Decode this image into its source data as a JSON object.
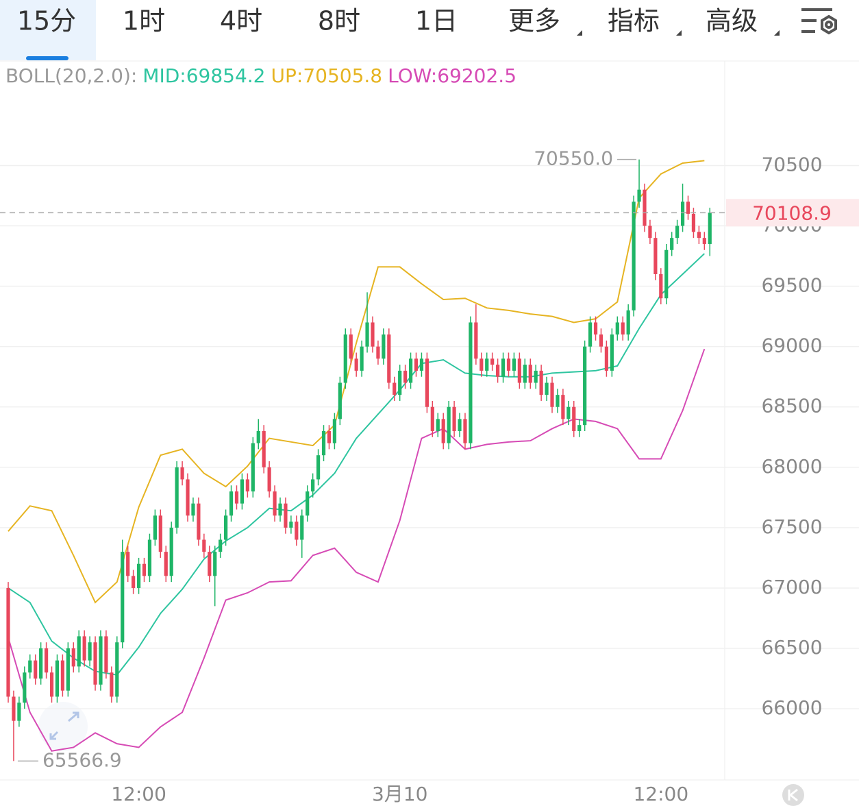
{
  "tabs": [
    "15分",
    "1时",
    "4时",
    "8时",
    "1日",
    "更多",
    "指标",
    "高级"
  ],
  "chart_data": {
    "type": "candlestick",
    "indicator": {
      "name": "BOLL(20,2.0):",
      "mid": "MID:69854.2",
      "up": "UP:70505.8",
      "low": "LOW:69202.5"
    },
    "candles": [
      [
        67000,
        67050,
        66050,
        66100
      ],
      [
        66100,
        66150,
        65566.9,
        65900
      ],
      [
        65900,
        66100,
        65850,
        66050
      ],
      [
        66050,
        66350,
        66000,
        66300
      ],
      [
        66300,
        66450,
        66250,
        66400
      ],
      [
        66400,
        66450,
        66200,
        66250
      ],
      [
        66250,
        66550,
        66200,
        66500
      ],
      [
        66500,
        66550,
        66250,
        66300
      ],
      [
        66300,
        66350,
        66050,
        66100
      ],
      [
        66100,
        66450,
        66050,
        66400
      ],
      [
        66400,
        66450,
        66100,
        66150
      ],
      [
        66150,
        66550,
        66100,
        66500
      ],
      [
        66500,
        66550,
        66300,
        66350
      ],
      [
        66350,
        66650,
        66300,
        66600
      ],
      [
        66600,
        66650,
        66350,
        66400
      ],
      [
        66400,
        66600,
        66350,
        66550
      ],
      [
        66550,
        66600,
        66150,
        66200
      ],
      [
        66200,
        66650,
        66150,
        66600
      ],
      [
        66600,
        66650,
        66250,
        66300
      ],
      [
        66300,
        66350,
        66050,
        66100
      ],
      [
        66100,
        66600,
        66050,
        66550
      ],
      [
        66550,
        67400,
        66500,
        67300
      ],
      [
        67300,
        67350,
        67050,
        67100
      ],
      [
        67100,
        67150,
        66950,
        67000
      ],
      [
        67000,
        67250,
        66950,
        67200
      ],
      [
        67200,
        67250,
        67050,
        67100
      ],
      [
        67100,
        67450,
        67050,
        67400
      ],
      [
        67400,
        67650,
        67350,
        67600
      ],
      [
        67600,
        67650,
        67250,
        67300
      ],
      [
        67300,
        67350,
        67050,
        67100
      ],
      [
        67100,
        67550,
        67050,
        67500
      ],
      [
        67500,
        68050,
        67450,
        68000
      ],
      [
        68000,
        68050,
        67850,
        67900
      ],
      [
        67900,
        67950,
        67550,
        67600
      ],
      [
        67600,
        67750,
        67550,
        67700
      ],
      [
        67700,
        67750,
        67350,
        67400
      ],
      [
        67400,
        67450,
        67250,
        67300
      ],
      [
        67300,
        67350,
        67050,
        67100
      ],
      [
        67100,
        67350,
        66850,
        67300
      ],
      [
        67300,
        67450,
        67250,
        67400
      ],
      [
        67400,
        67650,
        67350,
        67600
      ],
      [
        67600,
        67850,
        67550,
        67800
      ],
      [
        67800,
        67850,
        67650,
        67700
      ],
      [
        67700,
        67950,
        67650,
        67900
      ],
      [
        67900,
        67950,
        67750,
        67800
      ],
      [
        67800,
        68250,
        67750,
        68200
      ],
      [
        68200,
        68400,
        68150,
        68300
      ],
      [
        68300,
        68350,
        67950,
        68000
      ],
      [
        68000,
        68050,
        67750,
        67800
      ],
      [
        67800,
        67850,
        67550,
        67600
      ],
      [
        67600,
        67750,
        67550,
        67700
      ],
      [
        67700,
        67750,
        67450,
        67500
      ],
      [
        67500,
        67600,
        67450,
        67550
      ],
      [
        67550,
        67600,
        67350,
        67400
      ],
      [
        67400,
        67650,
        67250,
        67600
      ],
      [
        67600,
        67850,
        67550,
        67800
      ],
      [
        67800,
        67950,
        67750,
        67900
      ],
      [
        67900,
        68150,
        67850,
        68100
      ],
      [
        68100,
        68350,
        68050,
        68300
      ],
      [
        68300,
        68350,
        68150,
        68200
      ],
      [
        68200,
        68450,
        68150,
        68400
      ],
      [
        68400,
        68750,
        68350,
        68700
      ],
      [
        68700,
        69150,
        68650,
        69100
      ],
      [
        69100,
        69150,
        68850,
        68900
      ],
      [
        68900,
        68950,
        68750,
        68800
      ],
      [
        68800,
        69050,
        68750,
        69000
      ],
      [
        69000,
        69450,
        68950,
        69200
      ],
      [
        69200,
        69250,
        68950,
        69000
      ],
      [
        69000,
        69050,
        68850,
        68900
      ],
      [
        68900,
        69150,
        68850,
        69100
      ],
      [
        69100,
        69150,
        68650,
        68700
      ],
      [
        68700,
        68750,
        68550,
        68600
      ],
      [
        68600,
        68850,
        68550,
        68800
      ],
      [
        68800,
        68850,
        68650,
        68700
      ],
      [
        68700,
        68950,
        68650,
        68900
      ],
      [
        68900,
        68950,
        68750,
        68800
      ],
      [
        68800,
        68950,
        68750,
        68900
      ],
      [
        68900,
        68950,
        68450,
        68500
      ],
      [
        68500,
        68550,
        68250,
        68300
      ],
      [
        68300,
        68450,
        68250,
        68400
      ],
      [
        68400,
        68450,
        68150,
        68200
      ],
      [
        68200,
        68550,
        68150,
        68500
      ],
      [
        68500,
        68550,
        68250,
        68300
      ],
      [
        68300,
        68450,
        68250,
        68400
      ],
      [
        68400,
        68450,
        68150,
        68200
      ],
      [
        68200,
        69250,
        68150,
        69200
      ],
      [
        69200,
        69350,
        68850,
        68900
      ],
      [
        68900,
        68950,
        68750,
        68800
      ],
      [
        68800,
        68950,
        68750,
        68900
      ],
      [
        68900,
        68950,
        68800,
        68850
      ],
      [
        68850,
        68900,
        68700,
        68750
      ],
      [
        68750,
        68950,
        68700,
        68900
      ],
      [
        68900,
        68950,
        68750,
        68800
      ],
      [
        68800,
        68950,
        68750,
        68900
      ],
      [
        68900,
        68950,
        68650,
        68700
      ],
      [
        68700,
        68900,
        68650,
        68850
      ],
      [
        68850,
        68900,
        68650,
        68700
      ],
      [
        68700,
        68850,
        68650,
        68800
      ],
      [
        68800,
        68850,
        68550,
        68600
      ],
      [
        68600,
        68750,
        68550,
        68700
      ],
      [
        68700,
        68750,
        68450,
        68500
      ],
      [
        68500,
        68650,
        68450,
        68600
      ],
      [
        68600,
        68650,
        68350,
        68400
      ],
      [
        68400,
        68550,
        68350,
        68500
      ],
      [
        68500,
        68550,
        68250,
        68300
      ],
      [
        68300,
        68400,
        68250,
        68350
      ],
      [
        68350,
        69050,
        68300,
        69000
      ],
      [
        69000,
        69250,
        68950,
        69200
      ],
      [
        69200,
        69250,
        69050,
        69100
      ],
      [
        69100,
        69150,
        68950,
        69000
      ],
      [
        69000,
        69050,
        68750,
        68800
      ],
      [
        68800,
        69150,
        68750,
        69100
      ],
      [
        69100,
        69250,
        69050,
        69200
      ],
      [
        69200,
        69250,
        69050,
        69100
      ],
      [
        69100,
        69350,
        69050,
        69300
      ],
      [
        69300,
        70250,
        69250,
        70200
      ],
      [
        70200,
        70550,
        70150,
        70300
      ],
      [
        70300,
        70350,
        69950,
        70000
      ],
      [
        70000,
        70050,
        69850,
        69900
      ],
      [
        69900,
        69950,
        69550,
        69600
      ],
      [
        69600,
        69650,
        69350,
        69400
      ],
      [
        69400,
        69850,
        69350,
        69800
      ],
      [
        69800,
        69950,
        69750,
        69900
      ],
      [
        69900,
        70050,
        69850,
        70000
      ],
      [
        70000,
        70350,
        69950,
        70200
      ],
      [
        70200,
        70250,
        70050,
        70100
      ],
      [
        70100,
        70150,
        69900,
        69950
      ],
      [
        69950,
        70000,
        69850,
        69900
      ],
      [
        69900,
        69950,
        69800,
        69850
      ],
      [
        69850,
        70150,
        69750,
        70108.9
      ]
    ],
    "up_color": "#1fb567",
    "down_color": "#e8475c",
    "boll_x": [
      0,
      4,
      8,
      12,
      16,
      20,
      24,
      28,
      32,
      36,
      40,
      44,
      48,
      52,
      56,
      60,
      64,
      68,
      72,
      76,
      80,
      84,
      88,
      92,
      96,
      100,
      104,
      108,
      112,
      116,
      120,
      124,
      128
    ],
    "series": [
      {
        "name": "UP",
        "color": "#e6b422",
        "values": [
          67470,
          67680,
          67640,
          67270,
          66880,
          67050,
          67670,
          68100,
          68150,
          67950,
          67840,
          68010,
          68240,
          68210,
          68180,
          68350,
          69030,
          69660,
          69660,
          69520,
          69390,
          69400,
          69320,
          69300,
          69270,
          69250,
          69200,
          69230,
          69370,
          70230,
          70430,
          70520,
          70540
        ]
      },
      {
        "name": "MID",
        "color": "#2ec5a0",
        "values": [
          67000,
          66880,
          66560,
          66420,
          66310,
          66280,
          66510,
          66790,
          66990,
          67240,
          67390,
          67500,
          67660,
          67640,
          67770,
          67950,
          68240,
          68440,
          68640,
          68860,
          68890,
          68780,
          68760,
          68750,
          68750,
          68780,
          68790,
          68800,
          68840,
          69150,
          69430,
          69600,
          69770
        ]
      },
      {
        "name": "LOW",
        "color": "#d64bb5",
        "values": [
          66590,
          65970,
          65650,
          65680,
          65800,
          65710,
          65680,
          65850,
          65970,
          66420,
          66900,
          66960,
          67050,
          67060,
          67270,
          67330,
          67130,
          67050,
          67560,
          68240,
          68320,
          68150,
          68190,
          68210,
          68220,
          68320,
          68400,
          68380,
          68320,
          68070,
          68070,
          68470,
          68980
        ]
      }
    ],
    "high_label": "70550.0",
    "low_label": "65566.9",
    "ylim": [
      65410,
      71360
    ],
    "yticks": [
      66000,
      66500,
      67000,
      67500,
      68000,
      68500,
      69000,
      69500,
      70000,
      70500
    ],
    "xticks": [
      {
        "value": 24,
        "label": "12:00"
      },
      {
        "value": 72,
        "label": "3月10"
      },
      {
        "value": 120,
        "label": "12:00"
      }
    ],
    "grid": true
  }
}
